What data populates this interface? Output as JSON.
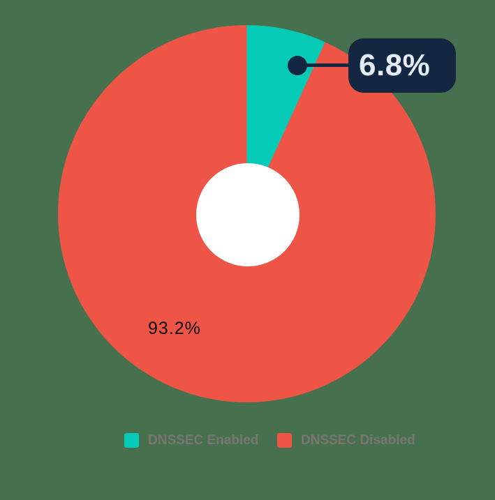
{
  "background_color": "#47714E",
  "chart_data": {
    "type": "pie",
    "title": "",
    "labels": [
      "DNSSEC Enabled",
      "DNSSEC Disabled"
    ],
    "values": [
      6.8,
      93.2
    ],
    "colors": [
      "#06CCB7",
      "#EE5546"
    ],
    "data_labels": [
      "6.8%",
      "93.2%"
    ],
    "donut": true,
    "hole_color": "#FFFFFF",
    "start_angle_deg": 0,
    "direction": "clockwise",
    "legend_position": "bottom"
  },
  "callout": {
    "label": "6.8%",
    "background": "#142740",
    "text_color": "#E4EEF9"
  },
  "inside_label": {
    "text": "93.2%",
    "color": "#0B0B0B"
  },
  "legend": {
    "text_color": "#7A7572",
    "items": [
      {
        "label": "DNSSEC Enabled",
        "color": "#06CCB7"
      },
      {
        "label": "DNSSEC Disabled",
        "color": "#EE5546"
      }
    ]
  }
}
